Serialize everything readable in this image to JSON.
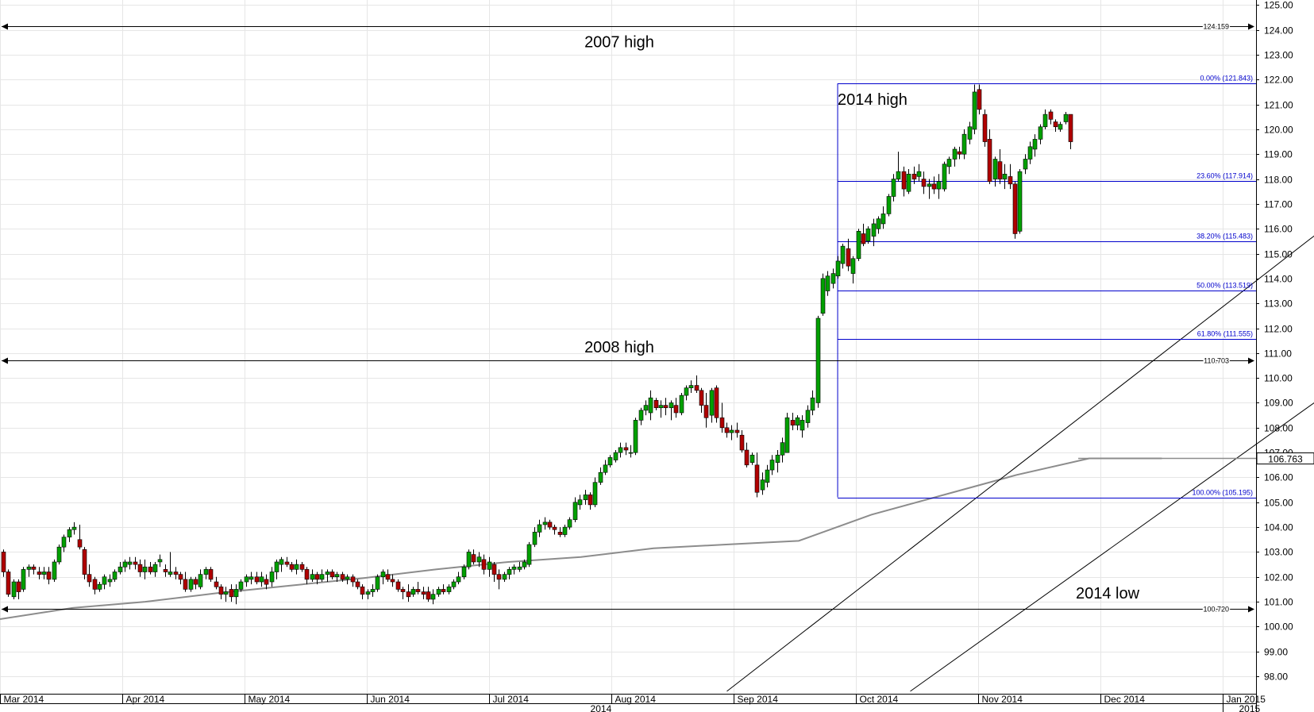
{
  "chart_data": {
    "type": "candlestick",
    "y_axis": {
      "ylim": [
        97.3,
        125.2
      ],
      "ticks": [
        "98.00",
        "99.00",
        "100.00",
        "101.00",
        "102.00",
        "103.00",
        "104.00",
        "105.00",
        "106.00",
        "107.00",
        "108.00",
        "109.00",
        "110.00",
        "111.00",
        "112.00",
        "113.00",
        "114.00",
        "115.00",
        "116.00",
        "117.00",
        "118.00",
        "119.00",
        "120.00",
        "121.00",
        "122.00",
        "123.00",
        "124.00",
        "125.00"
      ],
      "position": "right"
    },
    "x_axis": {
      "months": [
        "Mar 2014",
        "Apr 2014",
        "May 2014",
        "Jun 2014",
        "Jul 2014",
        "Aug 2014",
        "Sep 2014",
        "Oct 2014",
        "Nov 2014",
        "Dec 2014",
        "Jan 2015"
      ],
      "years": [
        "2014",
        "2015"
      ]
    },
    "grid": true,
    "horizontal_lines": [
      {
        "value": 124.159,
        "label": "124.159",
        "annotation": "2007 high"
      },
      {
        "value": 110.703,
        "label": "110.703",
        "annotation": "2008 high"
      },
      {
        "value": 100.72,
        "label": "100.720",
        "annotation": "2014 low"
      }
    ],
    "fibonacci_levels": [
      {
        "value": 121.843,
        "label": "0.00% (121.843)"
      },
      {
        "value": 117.914,
        "label": "23.60% (117.914)"
      },
      {
        "value": 115.483,
        "label": "38.20% (115.483)"
      },
      {
        "value": 113.519,
        "label": "50.00% (113.519)"
      },
      {
        "value": 111.555,
        "label": "61.80% (111.555)"
      },
      {
        "value": 105.195,
        "label": "100.00% (105.195)"
      }
    ],
    "fib_annotation": "2014 high",
    "last_price": "106.763",
    "moving_average": {
      "y": [
        100.3,
        100.75,
        101.0,
        101.35,
        101.65,
        101.95,
        102.3,
        102.6,
        102.8,
        103.15,
        103.3,
        103.45,
        104.5,
        105.3,
        106.1,
        106.763,
        106.763
      ]
    },
    "channel": [
      {
        "start": [
          5.88,
          97.4
        ],
        "end": [
          13.25,
          125.5
        ]
      },
      {
        "start": [
          7.38,
          97.4
        ],
        "end": [
          14.3,
          121.7
        ]
      }
    ],
    "colors": {
      "up": "#00a000",
      "down": "#b00000",
      "fib": "#0000cc",
      "ma": "#8c8c8c"
    },
    "candles": [
      [
        103.0,
        103.1,
        102.0,
        102.2
      ],
      [
        102.2,
        102.3,
        101.2,
        101.3
      ],
      [
        101.2,
        101.9,
        101.1,
        101.8
      ],
      [
        101.8,
        101.9,
        101.1,
        101.4
      ],
      [
        101.5,
        102.4,
        101.4,
        102.3
      ],
      [
        102.3,
        102.5,
        102.0,
        102.4
      ],
      [
        102.4,
        102.5,
        102.1,
        102.3
      ],
      [
        102.2,
        102.4,
        101.9,
        102.1
      ],
      [
        102.1,
        102.4,
        101.9,
        102.2
      ],
      [
        102.2,
        102.4,
        101.7,
        101.9
      ],
      [
        101.9,
        102.7,
        101.8,
        102.6
      ],
      [
        102.6,
        103.3,
        102.5,
        103.2
      ],
      [
        103.2,
        103.7,
        103.0,
        103.6
      ],
      [
        103.6,
        104.0,
        103.4,
        103.9
      ],
      [
        103.9,
        104.2,
        103.7,
        104.0
      ],
      [
        103.5,
        104.1,
        103.1,
        103.2
      ],
      [
        103.1,
        103.2,
        101.9,
        102.1
      ],
      [
        102.1,
        102.5,
        101.6,
        101.8
      ],
      [
        101.9,
        102.0,
        101.3,
        101.5
      ],
      [
        101.5,
        101.8,
        101.4,
        101.7
      ],
      [
        101.7,
        102.1,
        101.5,
        102.0
      ],
      [
        101.8,
        102.1,
        101.6,
        101.9
      ],
      [
        101.9,
        102.3,
        101.8,
        102.2
      ],
      [
        102.2,
        102.6,
        102.1,
        102.4
      ],
      [
        102.4,
        102.7,
        102.2,
        102.6
      ],
      [
        102.5,
        102.8,
        102.3,
        102.6
      ],
      [
        102.6,
        102.8,
        102.3,
        102.5
      ],
      [
        102.5,
        102.7,
        102.0,
        102.2
      ],
      [
        102.2,
        102.7,
        101.9,
        102.4
      ],
      [
        102.4,
        102.6,
        102.1,
        102.2
      ],
      [
        102.2,
        102.6,
        102.0,
        102.5
      ],
      [
        102.6,
        102.9,
        102.4,
        102.7
      ],
      [
        102.3,
        102.5,
        102.0,
        102.2
      ],
      [
        102.1,
        103.0,
        102.0,
        102.2
      ],
      [
        102.2,
        102.4,
        101.9,
        102.1
      ],
      [
        102.1,
        102.2,
        101.7,
        101.9
      ],
      [
        101.9,
        102.2,
        101.4,
        101.5
      ],
      [
        101.5,
        102.0,
        101.4,
        101.9
      ],
      [
        101.9,
        102.0,
        101.5,
        101.7
      ],
      [
        101.6,
        102.3,
        101.5,
        102.1
      ],
      [
        102.1,
        102.4,
        101.9,
        102.3
      ],
      [
        102.3,
        102.4,
        101.8,
        101.9
      ],
      [
        101.8,
        102.0,
        101.5,
        101.6
      ],
      [
        101.6,
        101.7,
        101.1,
        101.3
      ],
      [
        101.3,
        101.6,
        101.0,
        101.4
      ],
      [
        101.5,
        101.7,
        101.0,
        101.2
      ],
      [
        101.2,
        101.7,
        100.9,
        101.5
      ],
      [
        101.5,
        101.9,
        101.4,
        101.8
      ],
      [
        101.8,
        102.1,
        101.6,
        102.0
      ],
      [
        101.9,
        102.2,
        101.7,
        102.0
      ],
      [
        102.0,
        102.2,
        101.7,
        101.8
      ],
      [
        101.8,
        102.2,
        101.6,
        102.0
      ],
      [
        101.9,
        102.1,
        101.5,
        101.7
      ],
      [
        101.8,
        102.4,
        101.6,
        102.2
      ],
      [
        102.2,
        102.7,
        101.9,
        102.6
      ],
      [
        102.5,
        102.8,
        102.2,
        102.7
      ],
      [
        102.6,
        102.8,
        102.4,
        102.5
      ],
      [
        102.5,
        102.6,
        102.2,
        102.3
      ],
      [
        102.3,
        102.7,
        102.1,
        102.5
      ],
      [
        102.5,
        102.6,
        102.2,
        102.3
      ],
      [
        102.3,
        102.4,
        101.7,
        101.9
      ],
      [
        101.9,
        102.3,
        101.8,
        102.1
      ],
      [
        102.1,
        102.2,
        101.7,
        101.9
      ],
      [
        101.9,
        102.3,
        101.8,
        102.1
      ],
      [
        102.1,
        102.3,
        101.8,
        102.2
      ],
      [
        102.2,
        102.3,
        101.9,
        102.0
      ],
      [
        102.0,
        102.2,
        101.8,
        102.1
      ],
      [
        102.1,
        102.2,
        101.8,
        101.9
      ],
      [
        101.9,
        102.1,
        101.7,
        102.0
      ],
      [
        102.0,
        102.1,
        101.6,
        101.8
      ],
      [
        101.8,
        101.9,
        101.5,
        101.6
      ],
      [
        101.6,
        101.7,
        101.1,
        101.3
      ],
      [
        101.3,
        101.5,
        101.1,
        101.4
      ],
      [
        101.4,
        101.7,
        101.2,
        101.5
      ],
      [
        101.5,
        102.1,
        101.4,
        102.0
      ],
      [
        102.0,
        102.3,
        101.7,
        102.2
      ],
      [
        102.1,
        102.3,
        101.8,
        101.9
      ],
      [
        101.9,
        102.1,
        101.6,
        101.8
      ],
      [
        101.8,
        101.9,
        101.4,
        101.5
      ],
      [
        101.5,
        101.6,
        101.1,
        101.4
      ],
      [
        101.4,
        101.7,
        101.0,
        101.2
      ],
      [
        101.3,
        101.6,
        101.2,
        101.5
      ],
      [
        101.5,
        101.8,
        101.3,
        101.4
      ],
      [
        101.4,
        101.6,
        101.1,
        101.3
      ],
      [
        101.4,
        101.6,
        101.0,
        101.1
      ],
      [
        101.1,
        101.5,
        100.9,
        101.3
      ],
      [
        101.3,
        101.6,
        101.2,
        101.5
      ],
      [
        101.5,
        101.7,
        101.3,
        101.4
      ],
      [
        101.4,
        101.7,
        101.3,
        101.6
      ],
      [
        101.6,
        101.9,
        101.5,
        101.8
      ],
      [
        101.8,
        102.2,
        101.7,
        102.0
      ],
      [
        102.0,
        102.5,
        101.9,
        102.4
      ],
      [
        102.4,
        103.1,
        102.3,
        103.0
      ],
      [
        102.9,
        103.1,
        102.5,
        102.6
      ],
      [
        102.6,
        103.0,
        102.4,
        102.8
      ],
      [
        102.7,
        102.9,
        102.1,
        102.3
      ],
      [
        102.3,
        102.8,
        102.0,
        102.6
      ],
      [
        102.5,
        102.6,
        101.8,
        102.1
      ],
      [
        102.1,
        102.3,
        101.5,
        101.9
      ],
      [
        101.9,
        102.2,
        101.8,
        102.1
      ],
      [
        102.1,
        102.4,
        101.9,
        102.3
      ],
      [
        102.3,
        102.5,
        102.1,
        102.4
      ],
      [
        102.3,
        102.6,
        102.2,
        102.4
      ],
      [
        102.4,
        102.7,
        102.3,
        102.6
      ],
      [
        102.5,
        103.4,
        102.4,
        103.3
      ],
      [
        103.3,
        104.0,
        103.2,
        103.8
      ],
      [
        103.8,
        104.3,
        103.6,
        104.1
      ],
      [
        104.1,
        104.4,
        103.9,
        104.2
      ],
      [
        104.2,
        104.3,
        103.9,
        104.0
      ],
      [
        104.0,
        104.1,
        103.7,
        103.9
      ],
      [
        103.8,
        104.0,
        103.6,
        103.7
      ],
      [
        103.7,
        104.1,
        103.6,
        104.0
      ],
      [
        104.0,
        104.4,
        103.9,
        104.3
      ],
      [
        104.3,
        105.2,
        104.2,
        105.0
      ],
      [
        104.9,
        105.3,
        104.7,
        105.1
      ],
      [
        105.1,
        105.5,
        104.9,
        105.3
      ],
      [
        105.3,
        105.4,
        104.7,
        104.9
      ],
      [
        104.9,
        106.0,
        104.8,
        105.8
      ],
      [
        105.8,
        106.4,
        105.7,
        106.2
      ],
      [
        106.2,
        106.7,
        106.1,
        106.5
      ],
      [
        106.5,
        106.9,
        106.4,
        106.8
      ],
      [
        106.7,
        107.1,
        106.6,
        107.0
      ],
      [
        107.0,
        107.4,
        106.8,
        107.2
      ],
      [
        107.2,
        107.4,
        106.9,
        107.1
      ],
      [
        107.0,
        107.3,
        106.8,
        107.0
      ],
      [
        107.0,
        108.4,
        106.9,
        108.3
      ],
      [
        108.3,
        108.8,
        108.1,
        108.7
      ],
      [
        108.7,
        109.1,
        108.5,
        108.9
      ],
      [
        108.6,
        109.5,
        108.3,
        109.2
      ],
      [
        109.1,
        109.2,
        108.7,
        108.8
      ],
      [
        108.8,
        109.1,
        108.4,
        108.9
      ],
      [
        108.9,
        109.2,
        108.5,
        108.8
      ],
      [
        108.8,
        109.1,
        108.3,
        109.0
      ],
      [
        108.9,
        109.2,
        108.4,
        108.6
      ],
      [
        108.6,
        109.4,
        108.5,
        109.3
      ],
      [
        109.3,
        109.7,
        109.1,
        109.6
      ],
      [
        109.6,
        109.9,
        109.4,
        109.7
      ],
      [
        109.7,
        110.1,
        109.4,
        109.5
      ],
      [
        109.5,
        109.6,
        108.6,
        108.9
      ],
      [
        108.9,
        109.4,
        108.0,
        108.4
      ],
      [
        108.5,
        109.6,
        108.2,
        109.5
      ],
      [
        109.6,
        109.7,
        108.2,
        108.4
      ],
      [
        108.4,
        109.0,
        107.8,
        108.0
      ],
      [
        108.0,
        108.2,
        107.6,
        107.8
      ],
      [
        107.8,
        108.1,
        107.5,
        107.9
      ],
      [
        107.9,
        108.2,
        107.6,
        107.8
      ],
      [
        107.7,
        107.9,
        107.0,
        107.1
      ],
      [
        107.1,
        107.4,
        106.4,
        106.5
      ],
      [
        106.6,
        107.0,
        106.5,
        106.9
      ],
      [
        106.5,
        107.0,
        105.2,
        105.4
      ],
      [
        105.5,
        106.2,
        105.3,
        105.9
      ],
      [
        105.8,
        106.5,
        105.6,
        106.3
      ],
      [
        106.3,
        106.9,
        106.1,
        106.7
      ],
      [
        106.6,
        107.1,
        106.2,
        106.9
      ],
      [
        106.9,
        107.6,
        106.6,
        107.4
      ],
      [
        107.0,
        108.6,
        107.0,
        108.4
      ],
      [
        108.3,
        108.6,
        107.9,
        108.1
      ],
      [
        108.1,
        108.5,
        107.9,
        108.4
      ],
      [
        107.9,
        108.5,
        107.6,
        108.3
      ],
      [
        108.2,
        108.9,
        108.0,
        108.7
      ],
      [
        108.7,
        109.5,
        108.5,
        109.2
      ],
      [
        109.0,
        112.5,
        108.8,
        112.4
      ],
      [
        112.6,
        114.2,
        112.5,
        114.0
      ],
      [
        113.5,
        114.3,
        113.3,
        114.1
      ],
      [
        113.8,
        114.4,
        113.6,
        114.2
      ],
      [
        114.1,
        114.9,
        114.0,
        114.7
      ],
      [
        114.6,
        115.4,
        114.4,
        115.3
      ],
      [
        115.2,
        115.6,
        114.3,
        114.5
      ],
      [
        114.2,
        114.9,
        113.8,
        114.8
      ],
      [
        114.8,
        116.0,
        114.7,
        115.9
      ],
      [
        115.8,
        116.2,
        115.3,
        115.4
      ],
      [
        115.5,
        116.1,
        115.4,
        116.0
      ],
      [
        115.7,
        116.4,
        115.3,
        116.2
      ],
      [
        116.0,
        116.5,
        115.8,
        116.4
      ],
      [
        116.2,
        116.9,
        116.0,
        116.6
      ],
      [
        116.6,
        117.4,
        116.5,
        117.3
      ],
      [
        117.3,
        118.2,
        117.1,
        118.0
      ],
      [
        118.0,
        119.1,
        117.9,
        118.3
      ],
      [
        118.3,
        118.5,
        117.3,
        117.6
      ],
      [
        117.5,
        118.4,
        117.4,
        118.2
      ],
      [
        118.2,
        118.5,
        117.8,
        118.0
      ],
      [
        118.1,
        118.6,
        117.9,
        118.3
      ],
      [
        118.0,
        118.3,
        117.4,
        117.7
      ],
      [
        117.7,
        118.0,
        117.2,
        117.8
      ],
      [
        117.8,
        118.1,
        117.4,
        117.6
      ],
      [
        117.6,
        118.2,
        117.2,
        117.9
      ],
      [
        117.6,
        118.7,
        117.5,
        118.6
      ],
      [
        118.5,
        118.9,
        118.2,
        118.8
      ],
      [
        118.8,
        119.3,
        118.5,
        119.2
      ],
      [
        119.1,
        119.3,
        118.8,
        119.0
      ],
      [
        119.0,
        120.0,
        118.8,
        119.8
      ],
      [
        119.6,
        120.3,
        119.4,
        120.1
      ],
      [
        120.0,
        121.8,
        119.8,
        121.5
      ],
      [
        121.6,
        121.8,
        120.6,
        120.8
      ],
      [
        120.6,
        120.8,
        119.3,
        119.5
      ],
      [
        119.6,
        120.0,
        117.8,
        117.9
      ],
      [
        118.0,
        118.9,
        117.7,
        118.8
      ],
      [
        118.7,
        119.2,
        117.8,
        118.0
      ],
      [
        118.0,
        118.6,
        117.6,
        118.2
      ],
      [
        118.1,
        118.6,
        117.6,
        117.8
      ],
      [
        117.8,
        117.9,
        115.6,
        115.8
      ],
      [
        115.9,
        118.4,
        115.8,
        118.3
      ],
      [
        118.4,
        119.0,
        118.2,
        118.8
      ],
      [
        118.8,
        119.5,
        118.6,
        119.3
      ],
      [
        119.2,
        119.8,
        118.9,
        119.6
      ],
      [
        119.6,
        120.2,
        119.4,
        120.1
      ],
      [
        120.1,
        120.8,
        120.0,
        120.6
      ],
      [
        120.7,
        120.8,
        120.2,
        120.4
      ],
      [
        120.3,
        120.4,
        119.9,
        120.1
      ],
      [
        120.0,
        120.3,
        119.9,
        120.2
      ],
      [
        120.3,
        120.7,
        120.2,
        120.6
      ],
      [
        120.6,
        120.6,
        119.2,
        119.5
      ]
    ]
  }
}
